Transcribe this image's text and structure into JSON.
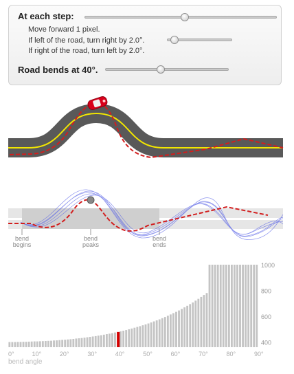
{
  "controls": {
    "step_heading": "At each step:",
    "move_text": "Move forward 1 pixel.",
    "left_rule": "If left of the road, turn right by 2.0°.",
    "right_rule": "If right of the road, turn left by 2.0°.",
    "bend_heading": "Road bends at 40°.",
    "sliders": [
      {
        "name": "step-slider",
        "value": 0.52
      },
      {
        "name": "turn-slider",
        "value": 0.12
      },
      {
        "name": "bend-slider",
        "value": 0.45
      }
    ]
  },
  "middle_labels": {
    "bend_begins": [
      "bend",
      "begins"
    ],
    "bend_peaks": [
      "bend",
      "peaks"
    ],
    "bend_ends": [
      "bend",
      "ends"
    ]
  },
  "colors": {
    "road": "#595959",
    "road_center": "#f2e600",
    "car": "#d9001b",
    "path": "#d21e1e",
    "ghost_paths": "#5a64e6",
    "bars": "#c4c4c4",
    "highlight_bar": "#d40000"
  },
  "chart_data": {
    "type": "bar",
    "title": "",
    "xlabel": "bend angle",
    "ylabel": "",
    "xlim": [
      0,
      90
    ],
    "ylim": [
      360,
      1000
    ],
    "xticks": [
      "0°",
      "10°",
      "20°",
      "30°",
      "40°",
      "50°",
      "60°",
      "70°",
      "80°",
      "90°"
    ],
    "yticks": [
      "400",
      "600",
      "800",
      "1000"
    ],
    "highlight_x": 40,
    "x": [
      1,
      2,
      3,
      4,
      5,
      6,
      7,
      8,
      9,
      10,
      11,
      12,
      13,
      14,
      15,
      16,
      17,
      18,
      19,
      20,
      21,
      22,
      23,
      24,
      25,
      26,
      27,
      28,
      29,
      30,
      31,
      32,
      33,
      34,
      35,
      36,
      37,
      38,
      39,
      40,
      41,
      42,
      43,
      44,
      45,
      46,
      47,
      48,
      49,
      50,
      51,
      52,
      53,
      54,
      55,
      56,
      57,
      58,
      59,
      60,
      61,
      62,
      63,
      64,
      65,
      66,
      67,
      68,
      69,
      70,
      71,
      72,
      73,
      74,
      75,
      76,
      77,
      78,
      79,
      80,
      81,
      82,
      83,
      84,
      85,
      86,
      87,
      88,
      89,
      90
    ],
    "values": [
      400,
      400,
      400,
      401,
      401,
      402,
      402,
      403,
      404,
      405,
      405,
      406,
      407,
      408,
      409,
      410,
      412,
      413,
      415,
      417,
      418,
      420,
      422,
      424,
      427,
      429,
      431,
      434,
      437,
      440,
      443,
      446,
      450,
      453,
      457,
      461,
      465,
      469,
      474,
      478,
      483,
      488,
      493,
      499,
      505,
      511,
      517,
      523,
      530,
      537,
      544,
      552,
      560,
      568,
      576,
      585,
      594,
      604,
      614,
      624,
      634,
      645,
      657,
      669,
      681,
      694,
      707,
      721,
      735,
      750,
      765,
      780,
      1000,
      1000,
      1000,
      1000,
      1000,
      1000,
      1000,
      1000,
      1000,
      1000,
      1000,
      1000,
      1000,
      1000,
      1000,
      1000,
      1000,
      1000
    ]
  }
}
